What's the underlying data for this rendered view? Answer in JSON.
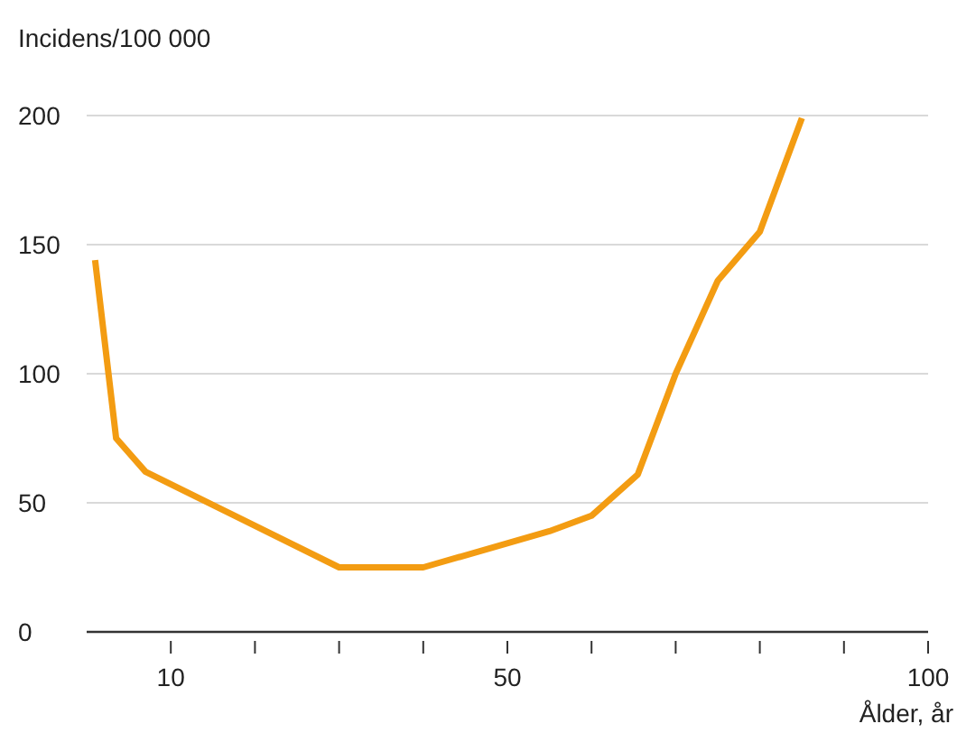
{
  "chart_data": {
    "type": "line",
    "ylabel": "Incidens/100 000",
    "xlabel": "Ålder, år",
    "x": [
      1,
      3.5,
      7,
      30,
      40,
      55,
      60,
      65.5,
      70,
      75,
      80,
      85
    ],
    "series": [
      {
        "color": "#f39c12",
        "values": [
          144,
          75,
          62,
          25,
          25,
          39,
          45,
          61,
          100,
          136,
          155,
          199
        ]
      }
    ],
    "xlim": [
      0,
      100
    ],
    "ylim": [
      0,
      200
    ],
    "xticks": [
      10,
      {
        "value": 20,
        "label": null
      },
      {
        "value": 30,
        "label": null
      },
      {
        "value": 40,
        "label": null
      },
      50,
      {
        "value": 60,
        "label": null
      },
      {
        "value": 70,
        "label": null
      },
      {
        "value": 80,
        "label": null
      },
      {
        "value": 90,
        "label": null
      },
      100
    ],
    "yticks": [
      0,
      50,
      100,
      150,
      200
    ],
    "grid": "y",
    "marker": "none",
    "line_style": "solid"
  }
}
